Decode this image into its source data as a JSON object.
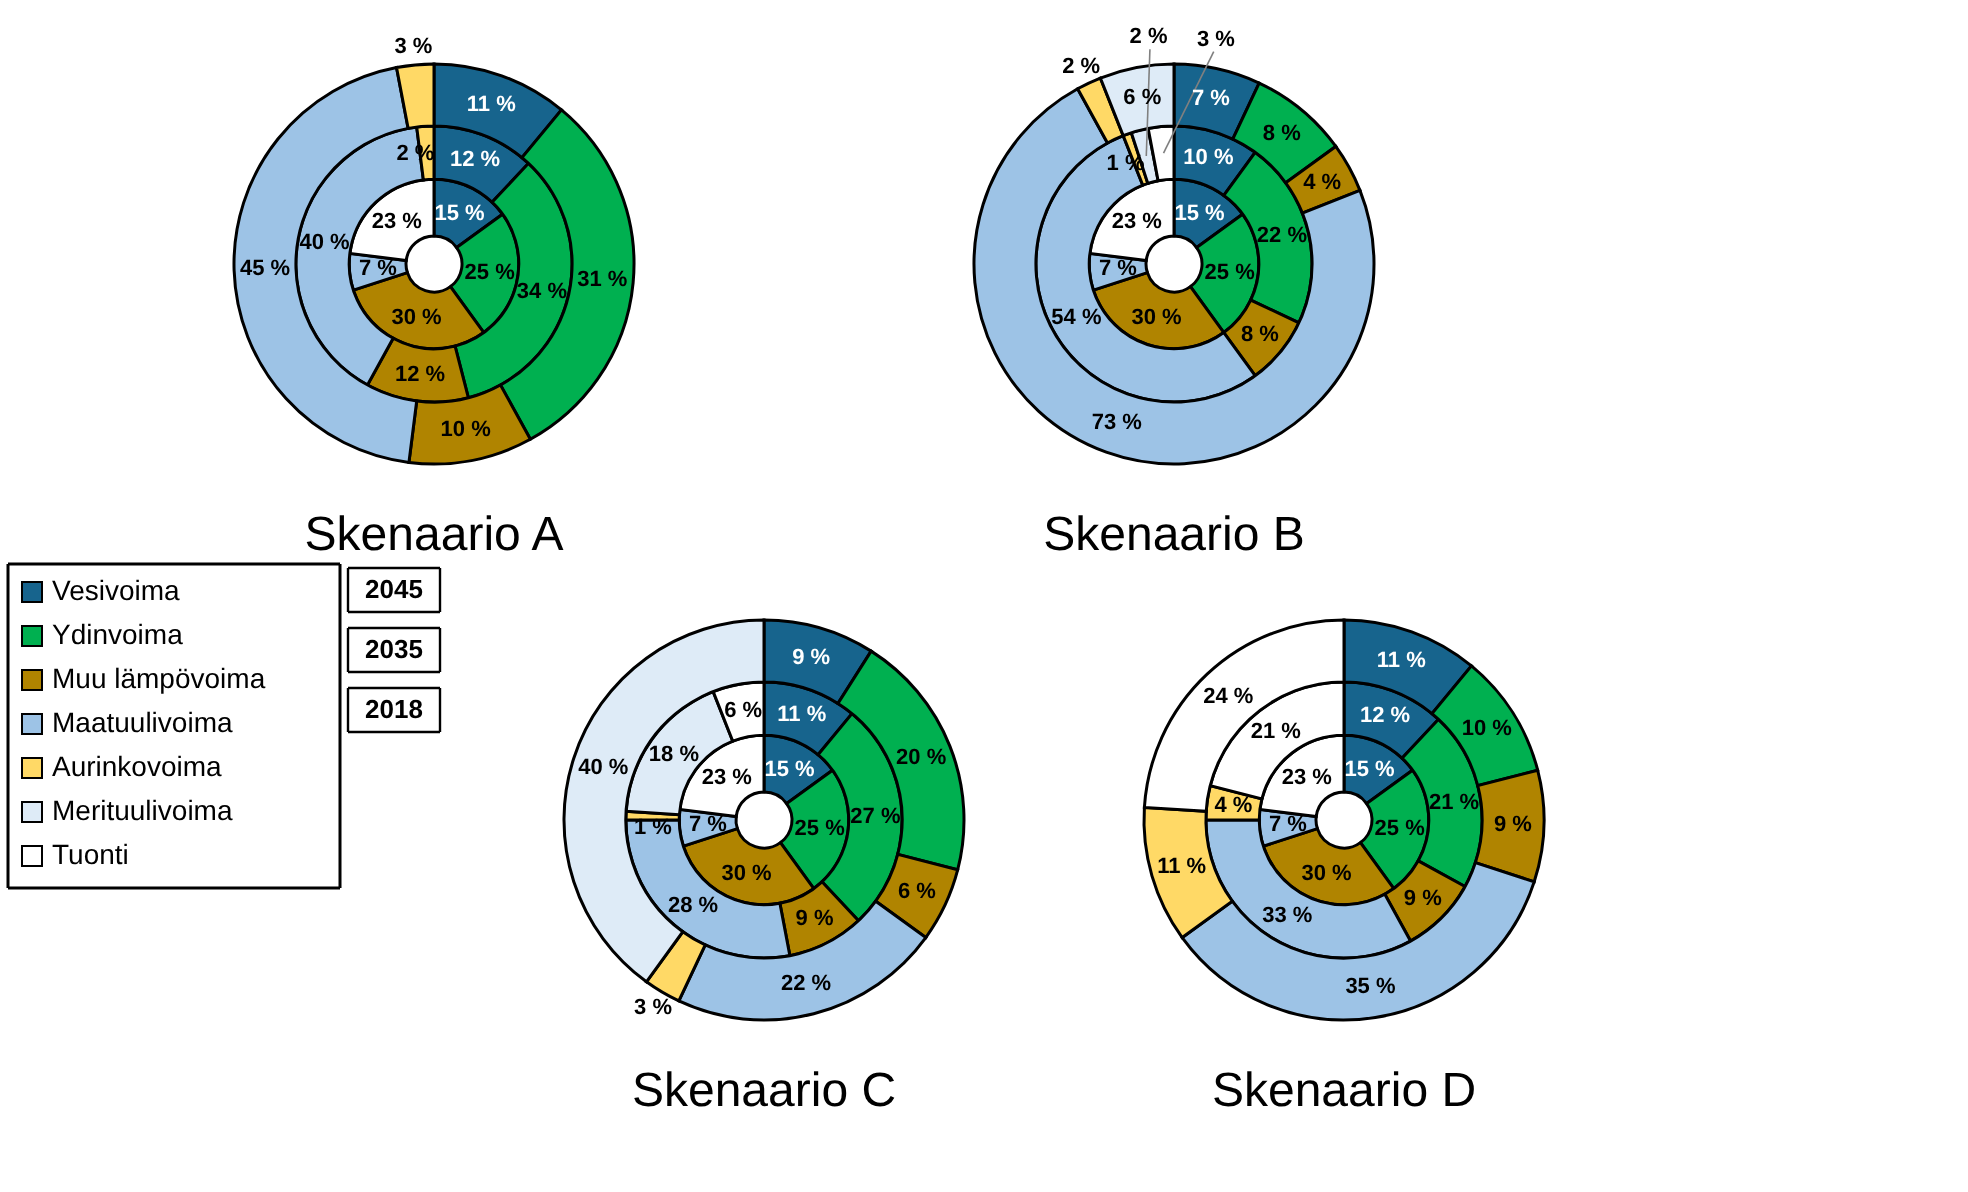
{
  "chart_data": [
    {
      "type": "donut",
      "title": "Skenaario A",
      "legend": "bottom left",
      "categories": [
        "Vesivoima",
        "Ydinvoima",
        "Muu lämpövoima",
        "Maatuulivoima",
        "Aurinkovoima",
        "Merituulivoima",
        "Tuonti"
      ],
      "colors": [
        "#17648d",
        "#00b050",
        "#b08400",
        "#9dc3e6",
        "#ffd966",
        "#deebf7",
        "#ffffff"
      ],
      "series": [
        {
          "name": "2018",
          "values": [
            15,
            25,
            30,
            7,
            null,
            null,
            23
          ],
          "value_labels": [
            "15 %",
            "25 %",
            "30 %",
            "7 %",
            null,
            null,
            "23 %"
          ]
        },
        {
          "name": "2035",
          "values": [
            12,
            34,
            12,
            40,
            2,
            null,
            null
          ],
          "value_labels": [
            "12 %",
            "34 %",
            "12 %",
            "40 %",
            "2 %",
            null,
            null
          ]
        },
        {
          "name": "2045",
          "values": [
            11,
            31,
            10,
            45,
            3,
            null,
            null
          ],
          "value_labels": [
            "11 %",
            "31 %",
            "10 %",
            "45 %",
            "3 %",
            null,
            null
          ]
        }
      ]
    },
    {
      "type": "donut",
      "title": "Skenaario B",
      "colors": [
        "#17648d",
        "#00b050",
        "#b08400",
        "#9dc3e6",
        "#ffd966",
        "#deebf7",
        "#ffffff"
      ],
      "series": [
        {
          "values": [
            15,
            25,
            30,
            7,
            null,
            null,
            23
          ],
          "value_labels": [
            "15 %",
            "25 %",
            "30 %",
            "7 %",
            null,
            null,
            "23 %"
          ]
        },
        {
          "values": [
            10,
            22,
            8,
            54,
            1,
            2,
            3
          ],
          "value_labels": [
            "10 %",
            "22 %",
            "8 %",
            "54 %",
            "1 %",
            "2 %",
            "3 %"
          ]
        },
        {
          "values": [
            7,
            8,
            4,
            73,
            2,
            6,
            null
          ],
          "value_labels": [
            "7 %",
            "8 %",
            "4 %",
            "73 %",
            "2 %",
            "6 %",
            null
          ]
        }
      ]
    },
    {
      "type": "donut",
      "title": "Skenaario C",
      "colors": [
        "#17648d",
        "#00b050",
        "#b08400",
        "#9dc3e6",
        "#ffd966",
        "#deebf7",
        "#ffffff"
      ],
      "series": [
        {
          "values": [
            15,
            25,
            30,
            7,
            null,
            null,
            23
          ],
          "value_labels": [
            "15 %",
            "25 %",
            "30 %",
            "7 %",
            null,
            null,
            "23 %"
          ]
        },
        {
          "values": [
            11,
            27,
            9,
            28,
            1,
            18,
            6
          ],
          "value_labels": [
            "11 %",
            "27 %",
            "9 %",
            "28 %",
            "1 %",
            "18 %",
            "6 %"
          ]
        },
        {
          "values": [
            9,
            20,
            6,
            22,
            3,
            40,
            null
          ],
          "value_labels": [
            "9 %",
            "20 %",
            "6 %",
            "22 %",
            "3 %",
            "40 %",
            null
          ]
        }
      ]
    },
    {
      "type": "donut",
      "title": "Skenaario D",
      "colors": [
        "#17648d",
        "#00b050",
        "#b08400",
        "#9dc3e6",
        "#ffd966",
        "#deebf7",
        "#ffffff"
      ],
      "series": [
        {
          "values": [
            15,
            25,
            30,
            7,
            null,
            null,
            23
          ],
          "value_labels": [
            "15 %",
            "25 %",
            "30 %",
            "7 %",
            null,
            null,
            "23 %"
          ]
        },
        {
          "values": [
            12,
            21,
            9,
            33,
            4,
            null,
            21
          ],
          "value_labels": [
            "12 %",
            "21 %",
            "9 %",
            "33 %",
            "4 %",
            null,
            "21 %"
          ]
        },
        {
          "values": [
            11,
            10,
            9,
            35,
            11,
            null,
            24
          ],
          "value_labels": [
            "11 %",
            "10 %",
            "9 %",
            "35 %",
            "11 %",
            null,
            "24 %"
          ]
        }
      ]
    }
  ]
}
